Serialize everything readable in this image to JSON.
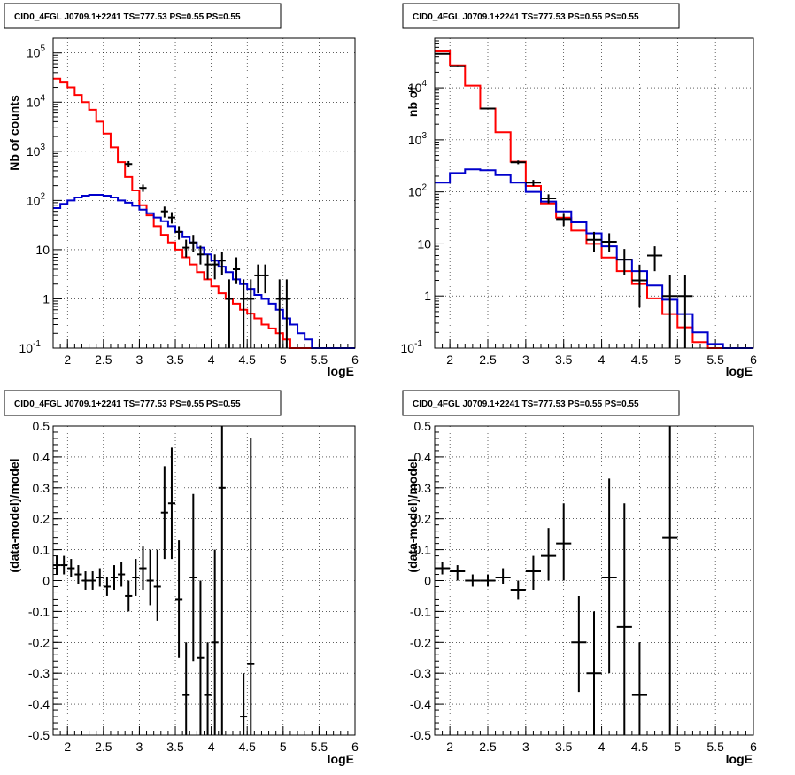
{
  "colors": {
    "model_total": "#ff0000",
    "model_source": "#0000cc",
    "data": "#000000",
    "grid": "#000000"
  },
  "chart_data": [
    {
      "type": "line",
      "title": "CID0_4FGL J0709.1+2241 TS=777.53 PS=0.55 PS=0.55",
      "xlabel": "logE",
      "ylabel": "Nb of counts",
      "xlim": [
        1.8,
        6.0
      ],
      "ylim": [
        0.1,
        200000
      ],
      "yscale": "log",
      "xticks": [
        "2",
        "2.5",
        "3",
        "3.5",
        "4",
        "4.5",
        "5",
        "5.5",
        "6"
      ],
      "yticks": [
        "10^-1",
        "1",
        "10",
        "10^2",
        "10^3",
        "10^4",
        "10^5"
      ],
      "grid": true,
      "series": [
        {
          "color": "red",
          "edges": [
            1.8,
            1.9,
            2.0,
            2.1,
            2.2,
            2.3,
            2.4,
            2.5,
            2.6,
            2.7,
            2.8,
            2.9,
            3.0,
            3.1,
            3.2,
            3.3,
            3.4,
            3.5,
            3.6,
            3.7,
            3.8,
            3.9,
            4.0,
            4.1,
            4.2,
            4.3,
            4.4,
            4.5,
            4.6,
            4.7,
            4.8,
            4.9,
            5.0,
            5.1,
            5.2,
            5.3,
            5.4,
            5.5,
            5.6,
            5.7,
            5.8,
            5.9,
            6.0
          ],
          "values": [
            30000,
            25000,
            20000,
            14000,
            10000,
            7000,
            4000,
            2300,
            1200,
            600,
            300,
            160,
            80,
            50,
            30,
            20,
            14,
            10,
            7,
            5,
            3.5,
            2.5,
            1.8,
            1.3,
            1.0,
            0.8,
            0.6,
            0.5,
            0.4,
            0.3,
            0.25,
            0.2,
            0.15,
            0.1,
            0.1,
            0.1,
            0.1,
            0.1,
            0.1,
            0.1,
            0.1,
            0.1
          ]
        },
        {
          "color": "blue",
          "edges": [
            1.8,
            1.9,
            2.0,
            2.1,
            2.2,
            2.3,
            2.4,
            2.5,
            2.6,
            2.7,
            2.8,
            2.9,
            3.0,
            3.1,
            3.2,
            3.3,
            3.4,
            3.5,
            3.6,
            3.7,
            3.8,
            3.9,
            4.0,
            4.1,
            4.2,
            4.3,
            4.4,
            4.5,
            4.6,
            4.7,
            4.8,
            4.9,
            5.0,
            5.1,
            5.2,
            5.3,
            5.4,
            5.5,
            5.6,
            5.7,
            5.8,
            5.9,
            6.0
          ],
          "values": [
            70,
            85,
            100,
            115,
            125,
            130,
            130,
            125,
            115,
            100,
            90,
            78,
            65,
            55,
            45,
            38,
            30,
            23,
            18,
            14,
            11,
            8,
            6,
            4.5,
            3.5,
            2.5,
            2,
            1.6,
            1.2,
            1,
            0.8,
            0.6,
            0.4,
            0.3,
            0.2,
            0.15,
            0.1,
            0.1,
            0.1,
            0.1,
            0.1,
            0.1
          ]
        }
      ],
      "points": [
        {
          "x": 2.85,
          "y": 550,
          "xerr": 0.05,
          "ylo": 470,
          "yhi": 630
        },
        {
          "x": 3.05,
          "y": 180,
          "xerr": 0.05,
          "ylo": 150,
          "yhi": 210
        },
        {
          "x": 3.35,
          "y": 60,
          "xerr": 0.05,
          "ylo": 45,
          "yhi": 75
        },
        {
          "x": 3.45,
          "y": 45,
          "xerr": 0.05,
          "ylo": 34,
          "yhi": 58
        },
        {
          "x": 3.55,
          "y": 23,
          "xerr": 0.05,
          "ylo": 16,
          "yhi": 30
        },
        {
          "x": 3.65,
          "y": 11,
          "xerr": 0.05,
          "ylo": 7,
          "yhi": 16
        },
        {
          "x": 3.75,
          "y": 14,
          "xerr": 0.05,
          "ylo": 9,
          "yhi": 20
        },
        {
          "x": 3.85,
          "y": 8,
          "xerr": 0.05,
          "ylo": 5,
          "yhi": 12
        },
        {
          "x": 3.95,
          "y": 5,
          "xerr": 0.05,
          "ylo": 2.5,
          "yhi": 8
        },
        {
          "x": 4.05,
          "y": 5,
          "xerr": 0.05,
          "ylo": 2.5,
          "yhi": 8
        },
        {
          "x": 4.15,
          "y": 6,
          "xerr": 0.05,
          "ylo": 3,
          "yhi": 9
        },
        {
          "x": 4.25,
          "y": 1,
          "xerr": 0.05,
          "ylo": 0.1,
          "yhi": 2.5
        },
        {
          "x": 4.35,
          "y": 4,
          "xerr": 0.05,
          "ylo": 2,
          "yhi": 7
        },
        {
          "x": 4.45,
          "y": 1,
          "xerr": 0.05,
          "ylo": 0.1,
          "yhi": 2.5
        },
        {
          "x": 4.55,
          "y": 1,
          "xerr": 0.05,
          "ylo": 0.1,
          "yhi": 2.5
        },
        {
          "x": 4.65,
          "y": 3,
          "xerr": 0.05,
          "ylo": 1.3,
          "yhi": 5
        },
        {
          "x": 4.75,
          "y": 3,
          "xerr": 0.05,
          "ylo": 1.3,
          "yhi": 5
        },
        {
          "x": 4.95,
          "y": 1,
          "xerr": 0.05,
          "ylo": 0.1,
          "yhi": 2.5
        },
        {
          "x": 5.05,
          "y": 1,
          "xerr": 0.05,
          "ylo": 0.1,
          "yhi": 2.5
        }
      ]
    },
    {
      "type": "line",
      "title": "CID0_4FGL J0709.1+2241 TS=777.53 PS=0.55 PS=0.55",
      "xlabel": "logE",
      "ylabel": "nb of",
      "xlim": [
        1.8,
        6.0
      ],
      "ylim": [
        0.1,
        90000
      ],
      "yscale": "log",
      "xticks": [
        "2",
        "2.5",
        "3",
        "3.5",
        "4",
        "4.5",
        "5",
        "5.5",
        "6"
      ],
      "yticks": [
        "10^-1",
        "1",
        "10",
        "10^2",
        "10^3",
        "10^4"
      ],
      "grid": true,
      "series": [
        {
          "color": "red",
          "edges": [
            1.8,
            2.0,
            2.2,
            2.4,
            2.6,
            2.8,
            3.0,
            3.2,
            3.4,
            3.6,
            3.8,
            4.0,
            4.2,
            4.4,
            4.6,
            4.8,
            5.0,
            5.2,
            5.4,
            5.6,
            5.8,
            6.0
          ],
          "values": [
            50000,
            27000,
            11000,
            4000,
            1400,
            380,
            130,
            60,
            32,
            18,
            10,
            5.5,
            3,
            1.7,
            0.9,
            0.45,
            0.25,
            0.13,
            0.1,
            0.1,
            0.1
          ]
        },
        {
          "color": "blue",
          "edges": [
            1.8,
            2.0,
            2.2,
            2.4,
            2.6,
            2.8,
            3.0,
            3.2,
            3.4,
            3.6,
            3.8,
            4.0,
            4.2,
            4.4,
            4.6,
            4.8,
            5.0,
            5.2,
            5.4,
            5.6,
            5.8,
            6.0
          ],
          "values": [
            150,
            230,
            270,
            260,
            210,
            150,
            100,
            65,
            42,
            26,
            16,
            9,
            5,
            3,
            1.6,
            0.85,
            0.45,
            0.2,
            0.12,
            0.1,
            0.1
          ]
        }
      ],
      "points": [
        {
          "x": 1.9,
          "y": 45000,
          "xerr": 0.1,
          "ylo": 44000,
          "yhi": 46000
        },
        {
          "x": 2.1,
          "y": 26000,
          "xerr": 0.1,
          "ylo": 25000,
          "yhi": 27000
        },
        {
          "x": 2.5,
          "y": 4000,
          "xerr": 0.1,
          "ylo": 3850,
          "yhi": 4150
        },
        {
          "x": 2.9,
          "y": 370,
          "xerr": 0.1,
          "ylo": 340,
          "yhi": 400
        },
        {
          "x": 3.1,
          "y": 150,
          "xerr": 0.1,
          "ylo": 130,
          "yhi": 170
        },
        {
          "x": 3.3,
          "y": 75,
          "xerr": 0.1,
          "ylo": 60,
          "yhi": 90
        },
        {
          "x": 3.5,
          "y": 30,
          "xerr": 0.1,
          "ylo": 22,
          "yhi": 38
        },
        {
          "x": 3.9,
          "y": 12,
          "xerr": 0.1,
          "ylo": 7,
          "yhi": 17
        },
        {
          "x": 4.1,
          "y": 11,
          "xerr": 0.1,
          "ylo": 7,
          "yhi": 16
        },
        {
          "x": 4.3,
          "y": 5,
          "xerr": 0.1,
          "ylo": 2.5,
          "yhi": 8
        },
        {
          "x": 4.5,
          "y": 2,
          "xerr": 0.1,
          "ylo": 0.6,
          "yhi": 4
        },
        {
          "x": 4.7,
          "y": 6,
          "xerr": 0.1,
          "ylo": 3,
          "yhi": 9
        },
        {
          "x": 4.9,
          "y": 1,
          "xerr": 0.1,
          "ylo": 0.1,
          "yhi": 2.5
        },
        {
          "x": 5.1,
          "y": 1,
          "xerr": 0.1,
          "ylo": 0.1,
          "yhi": 2.5
        }
      ]
    },
    {
      "type": "scatter",
      "title": "CID0_4FGL J0709.1+2241 TS=777.53 PS=0.55 PS=0.55",
      "xlabel": "logE",
      "ylabel": "(data-model)/model",
      "xlim": [
        1.8,
        6.0
      ],
      "ylim": [
        -0.5,
        0.5
      ],
      "yscale": "linear",
      "xticks": [
        "2",
        "2.5",
        "3",
        "3.5",
        "4",
        "4.5",
        "5",
        "5.5",
        "6"
      ],
      "yticks": [
        "-0.5",
        "-0.4",
        "-0.3",
        "-0.2",
        "-0.1",
        "0",
        "0.1",
        "0.2",
        "0.3",
        "0.4",
        "0.5"
      ],
      "grid": true,
      "points": [
        {
          "x": 1.85,
          "y": 0.05,
          "xerr": 0.05,
          "ylo": 0.02,
          "yhi": 0.08
        },
        {
          "x": 1.95,
          "y": 0.05,
          "xerr": 0.05,
          "ylo": 0.02,
          "yhi": 0.08
        },
        {
          "x": 2.05,
          "y": 0.04,
          "xerr": 0.05,
          "ylo": 0.01,
          "yhi": 0.07
        },
        {
          "x": 2.15,
          "y": 0.02,
          "xerr": 0.05,
          "ylo": -0.01,
          "yhi": 0.05
        },
        {
          "x": 2.25,
          "y": 0.0,
          "xerr": 0.05,
          "ylo": -0.03,
          "yhi": 0.03
        },
        {
          "x": 2.35,
          "y": 0.0,
          "xerr": 0.05,
          "ylo": -0.03,
          "yhi": 0.03
        },
        {
          "x": 2.45,
          "y": 0.01,
          "xerr": 0.05,
          "ylo": -0.02,
          "yhi": 0.04
        },
        {
          "x": 2.55,
          "y": -0.02,
          "xerr": 0.05,
          "ylo": -0.05,
          "yhi": 0.01
        },
        {
          "x": 2.65,
          "y": 0.01,
          "xerr": 0.05,
          "ylo": -0.03,
          "yhi": 0.05
        },
        {
          "x": 2.75,
          "y": 0.02,
          "xerr": 0.05,
          "ylo": -0.02,
          "yhi": 0.06
        },
        {
          "x": 2.85,
          "y": -0.05,
          "xerr": 0.05,
          "ylo": -0.1,
          "yhi": 0.0
        },
        {
          "x": 2.95,
          "y": 0.01,
          "xerr": 0.05,
          "ylo": -0.05,
          "yhi": 0.07
        },
        {
          "x": 3.05,
          "y": 0.04,
          "xerr": 0.05,
          "ylo": -0.03,
          "yhi": 0.11
        },
        {
          "x": 3.15,
          "y": 0.0,
          "xerr": 0.05,
          "ylo": -0.08,
          "yhi": 0.1
        },
        {
          "x": 3.25,
          "y": -0.02,
          "xerr": 0.05,
          "ylo": -0.13,
          "yhi": 0.1
        },
        {
          "x": 3.35,
          "y": 0.22,
          "xerr": 0.05,
          "ylo": 0.07,
          "yhi": 0.37
        },
        {
          "x": 3.45,
          "y": 0.25,
          "xerr": 0.05,
          "ylo": 0.07,
          "yhi": 0.43
        },
        {
          "x": 3.55,
          "y": -0.06,
          "xerr": 0.05,
          "ylo": -0.25,
          "yhi": 0.13
        },
        {
          "x": 3.65,
          "y": -0.37,
          "xerr": 0.05,
          "ylo": -0.5,
          "yhi": -0.2
        },
        {
          "x": 3.75,
          "y": 0.01,
          "xerr": 0.05,
          "ylo": -0.26,
          "yhi": 0.28
        },
        {
          "x": 3.85,
          "y": -0.25,
          "xerr": 0.05,
          "ylo": -0.5,
          "yhi": 0.0
        },
        {
          "x": 3.95,
          "y": -0.37,
          "xerr": 0.05,
          "ylo": -0.5,
          "yhi": -0.2
        },
        {
          "x": 4.05,
          "y": -0.2,
          "xerr": 0.05,
          "ylo": -0.5,
          "yhi": 0.1
        },
        {
          "x": 4.15,
          "y": 0.3,
          "xerr": 0.05,
          "ylo": -0.5,
          "yhi": 0.5
        },
        {
          "x": 4.45,
          "y": -0.44,
          "xerr": 0.05,
          "ylo": -0.5,
          "yhi": -0.3
        },
        {
          "x": 4.55,
          "y": -0.27,
          "xerr": 0.05,
          "ylo": -0.5,
          "yhi": 0.46
        }
      ]
    },
    {
      "type": "scatter",
      "title": "CID0_4FGL J0709.1+2241 TS=777.53 PS=0.55 PS=0.55",
      "xlabel": "logE",
      "ylabel": "(data-model)/model",
      "xlim": [
        1.8,
        6.0
      ],
      "ylim": [
        -0.5,
        0.5
      ],
      "yscale": "linear",
      "xticks": [
        "2",
        "2.5",
        "3",
        "3.5",
        "4",
        "4.5",
        "5",
        "5.5",
        "6"
      ],
      "yticks": [
        "-0.5",
        "-0.4",
        "-0.3",
        "-0.2",
        "-0.1",
        "0",
        "0.1",
        "0.2",
        "0.3",
        "0.4",
        "0.5"
      ],
      "grid": true,
      "points": [
        {
          "x": 1.9,
          "y": 0.04,
          "xerr": 0.1,
          "ylo": 0.02,
          "yhi": 0.06
        },
        {
          "x": 2.1,
          "y": 0.03,
          "xerr": 0.1,
          "ylo": 0.0,
          "yhi": 0.05
        },
        {
          "x": 2.3,
          "y": 0.0,
          "xerr": 0.1,
          "ylo": -0.02,
          "yhi": 0.02
        },
        {
          "x": 2.5,
          "y": 0.0,
          "xerr": 0.1,
          "ylo": -0.02,
          "yhi": 0.02
        },
        {
          "x": 2.7,
          "y": 0.01,
          "xerr": 0.1,
          "ylo": -0.01,
          "yhi": 0.04
        },
        {
          "x": 2.9,
          "y": -0.03,
          "xerr": 0.1,
          "ylo": -0.06,
          "yhi": 0.0
        },
        {
          "x": 3.1,
          "y": 0.03,
          "xerr": 0.1,
          "ylo": -0.03,
          "yhi": 0.08
        },
        {
          "x": 3.3,
          "y": 0.08,
          "xerr": 0.1,
          "ylo": 0.0,
          "yhi": 0.17
        },
        {
          "x": 3.5,
          "y": 0.12,
          "xerr": 0.1,
          "ylo": 0.0,
          "yhi": 0.25
        },
        {
          "x": 3.7,
          "y": -0.2,
          "xerr": 0.1,
          "ylo": -0.36,
          "yhi": -0.05
        },
        {
          "x": 3.9,
          "y": -0.3,
          "xerr": 0.1,
          "ylo": -0.5,
          "yhi": -0.1
        },
        {
          "x": 4.1,
          "y": 0.01,
          "xerr": 0.1,
          "ylo": -0.3,
          "yhi": 0.33
        },
        {
          "x": 4.3,
          "y": -0.15,
          "xerr": 0.1,
          "ylo": -0.5,
          "yhi": 0.25
        },
        {
          "x": 4.5,
          "y": -0.37,
          "xerr": 0.1,
          "ylo": -0.5,
          "yhi": -0.2
        },
        {
          "x": 4.9,
          "y": 0.14,
          "xerr": 0.1,
          "ylo": -0.5,
          "yhi": 0.5
        }
      ]
    }
  ]
}
